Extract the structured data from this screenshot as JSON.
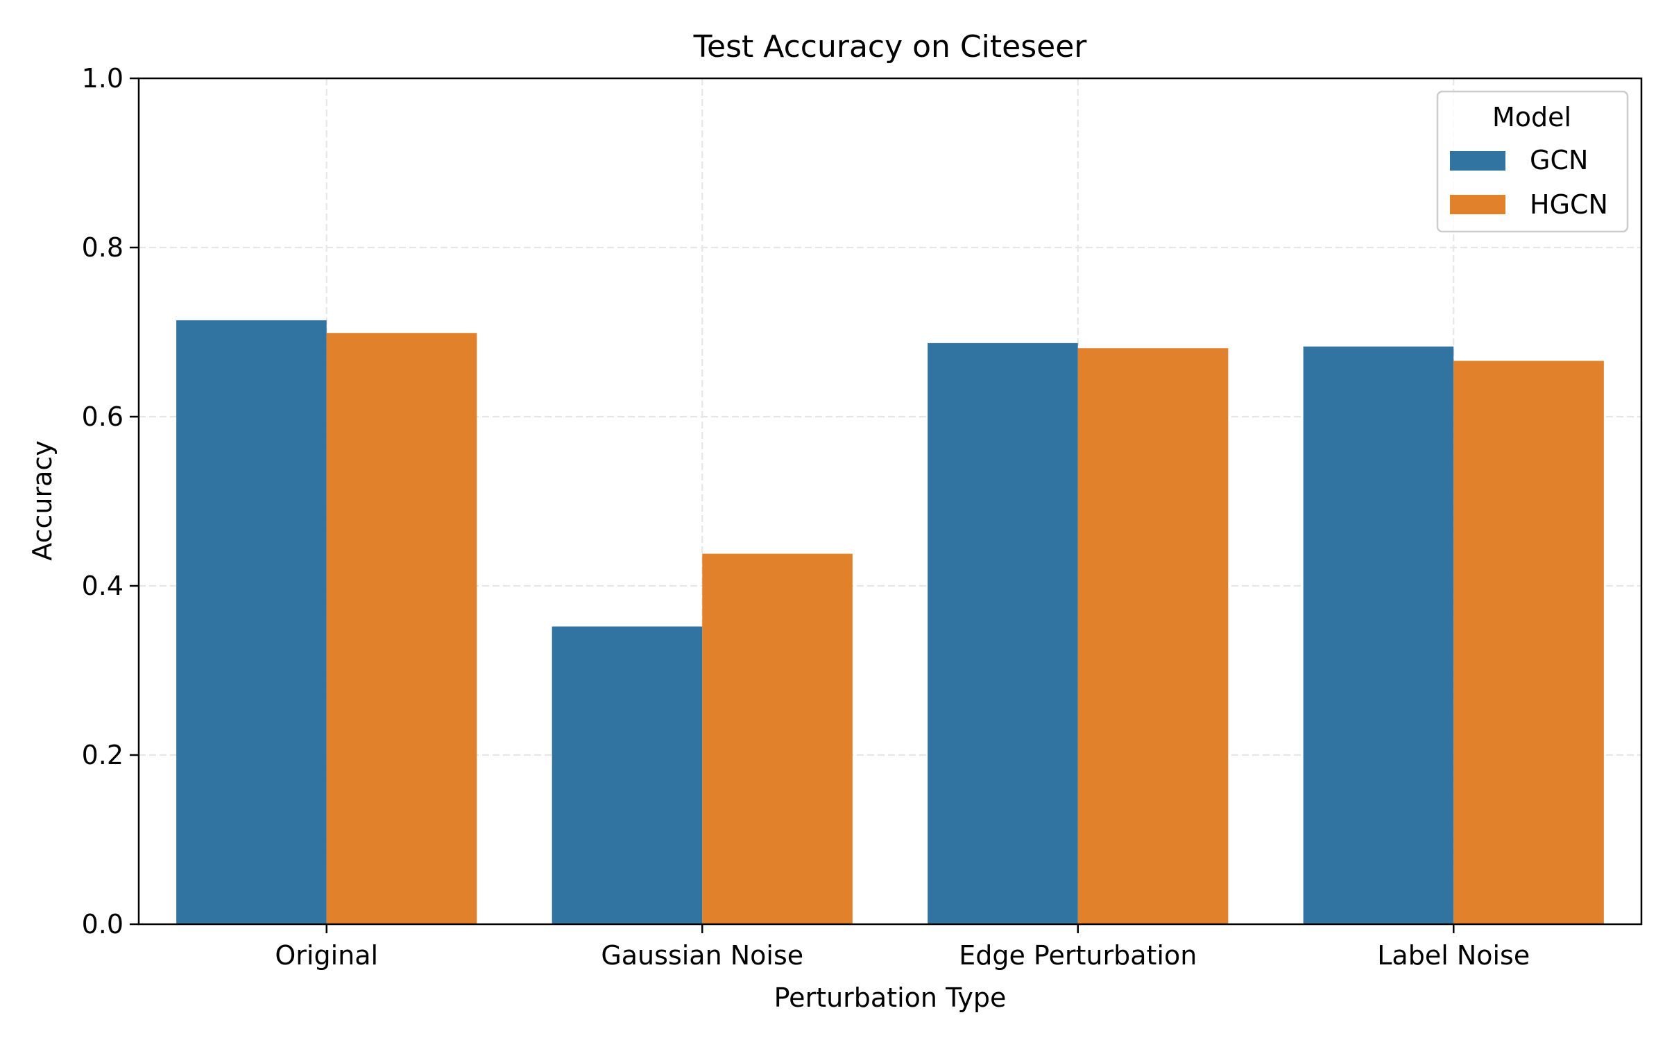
{
  "chart_data": {
    "type": "bar",
    "title": "Test Accuracy on Citeseer",
    "xlabel": "Perturbation Type",
    "ylabel": "Accuracy",
    "categories": [
      "Original",
      "Gaussian Noise",
      "Edge Perturbation",
      "Label Noise"
    ],
    "series": [
      {
        "name": "GCN",
        "color": "#3274a1",
        "values": [
          0.714,
          0.352,
          0.687,
          0.683
        ]
      },
      {
        "name": "HGCN",
        "color": "#e1812c",
        "values": [
          0.699,
          0.438,
          0.681,
          0.666
        ]
      }
    ],
    "ylim": [
      0,
      1.0
    ],
    "yticks": [
      0.0,
      0.2,
      0.4,
      0.6,
      0.8,
      1.0
    ],
    "ytick_labels": [
      "0.0",
      "0.2",
      "0.4",
      "0.6",
      "0.8",
      "1.0"
    ],
    "grid": true,
    "legend": {
      "title": "Model",
      "placement": "top-right"
    }
  }
}
